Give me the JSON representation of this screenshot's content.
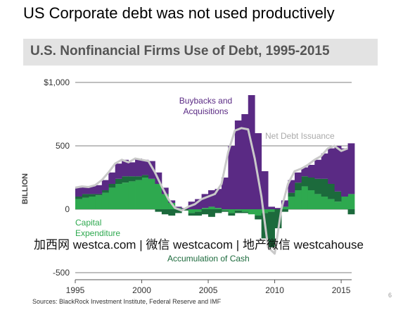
{
  "slide_title": "US Corporate debt was not used productively",
  "page_number": "6",
  "watermark": "加西网 westca.com | 微信 westcacom | 地产微信 westcahouse",
  "chart_data": {
    "type": "area",
    "stacked": true,
    "title": "U.S. Nonfinancial Firms Use of Debt, 1995-2015",
    "y_label": "BILLION",
    "source": "Sources: BlackRock Investment Institute, Federal Reserve and IMF",
    "x": [
      1995,
      1995.5,
      1996,
      1996.5,
      1997,
      1997.5,
      1998,
      1998.5,
      1999,
      1999.5,
      2000,
      2000.5,
      2001,
      2001.5,
      2002,
      2002.5,
      2003,
      2003.5,
      2004,
      2004.5,
      2005,
      2005.5,
      2006,
      2006.5,
      2007,
      2007.5,
      2008,
      2008.5,
      2009,
      2009.5,
      2010,
      2010.5,
      2011,
      2011.5,
      2012,
      2012.5,
      2013,
      2013.5,
      2014,
      2014.5,
      2015,
      2015.5
    ],
    "series": [
      {
        "name": "Capital Expenditure",
        "color": "#2ea94f",
        "values": [
          80,
          90,
          100,
          110,
          130,
          170,
          200,
          210,
          220,
          230,
          250,
          240,
          200,
          120,
          50,
          10,
          0,
          -30,
          -20,
          10,
          20,
          10,
          -10,
          -30,
          -10,
          -20,
          -40,
          -50,
          -30,
          -20,
          0,
          20,
          100,
          150,
          180,
          150,
          120,
          100,
          80,
          60,
          100,
          120
        ]
      },
      {
        "name": "Accumulation of Cash",
        "color": "#1c6a3c",
        "values": [
          20,
          30,
          20,
          10,
          20,
          30,
          40,
          50,
          40,
          30,
          20,
          0,
          -20,
          -40,
          -50,
          -30,
          -10,
          -20,
          -30,
          -40,
          -60,
          -30,
          -10,
          -20,
          -20,
          -10,
          0,
          -30,
          -200,
          -280,
          -150,
          -20,
          30,
          60,
          80,
          100,
          120,
          140,
          120,
          80,
          0,
          -40
        ]
      },
      {
        "name": "Buybacks and Acquisitions",
        "color": "#5a2a84",
        "values": [
          70,
          60,
          60,
          70,
          80,
          90,
          120,
          130,
          110,
          140,
          120,
          140,
          90,
          50,
          20,
          10,
          10,
          60,
          80,
          110,
          130,
          150,
          250,
          500,
          700,
          750,
          900,
          600,
          300,
          20,
          10,
          50,
          100,
          80,
          70,
          100,
          150,
          200,
          280,
          360,
          380,
          400
        ]
      },
      {
        "name": "Net Debt Issuance",
        "color": "#c9c9c9",
        "type": "line",
        "values": [
          170,
          180,
          175,
          190,
          230,
          290,
          360,
          390,
          370,
          400,
          390,
          380,
          290,
          180,
          80,
          10,
          -10,
          20,
          40,
          80,
          100,
          120,
          200,
          450,
          620,
          640,
          630,
          400,
          100,
          -300,
          -350,
          0,
          200,
          300,
          320,
          350,
          390,
          420,
          480,
          500,
          460,
          480
        ]
      }
    ],
    "xlim": [
      1995,
      2016
    ],
    "ylim": [
      -550,
      1000
    ],
    "xticks": [
      1995,
      2000,
      2005,
      2010,
      2015
    ],
    "yticks": [
      {
        "value": 1000,
        "label": "$1,000"
      },
      500,
      0,
      -500
    ],
    "grid": true
  }
}
